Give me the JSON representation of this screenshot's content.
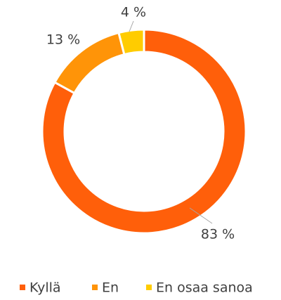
{
  "chart_data": {
    "type": "donut",
    "categories": [
      "Kyllä",
      "En",
      "En osaa sanoa"
    ],
    "values": [
      83,
      13,
      4
    ],
    "value_labels": [
      "83 %",
      "13 %",
      "4 %"
    ],
    "colors": [
      "#ff5f0a",
      "#ff9408",
      "#ffcc00"
    ],
    "legend": "bottom"
  }
}
